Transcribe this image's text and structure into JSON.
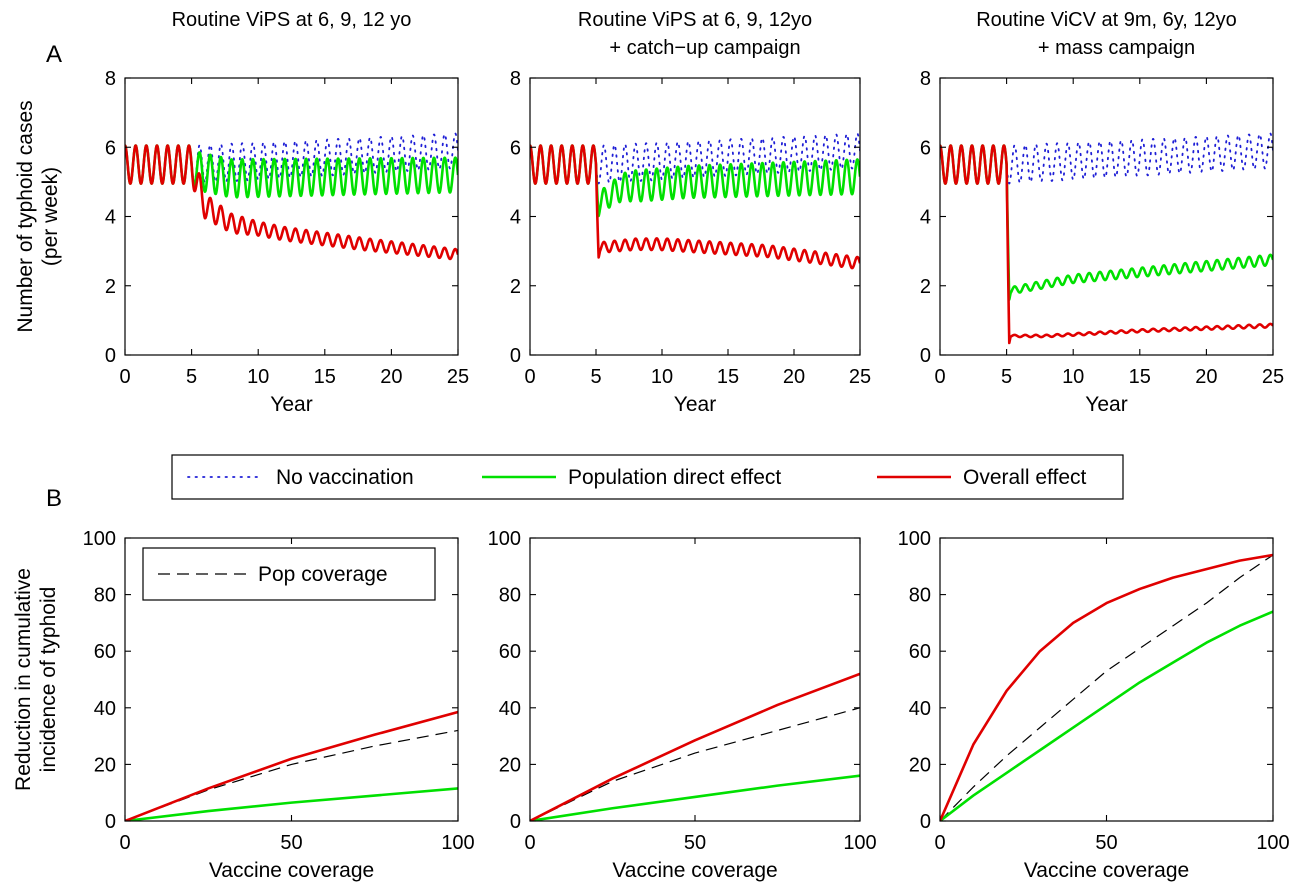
{
  "figure": {
    "panel_labels": [
      "A",
      "B"
    ],
    "legend_entries": [
      "No vaccination",
      "Population direct effect",
      "Overall effect"
    ],
    "colors": {
      "no_vaccination": "#1f1fd6",
      "direct": "#00e000",
      "overall": "#e00000",
      "coverage": "#000000"
    }
  },
  "chart_data": [
    {
      "type": "line",
      "title": [
        "Routine ViPS at 6, 9, 12 yo"
      ],
      "xlabel": "Year",
      "ylabel": [
        "Number of typhoid cases",
        "(per week)"
      ],
      "xlim": [
        0,
        25
      ],
      "ylim": [
        0,
        8
      ],
      "xticks": [
        0,
        5,
        10,
        15,
        20,
        25
      ],
      "yticks": [
        0,
        2,
        4,
        6,
        8
      ],
      "grid": false,
      "series": [
        {
          "name": "No vaccination",
          "style": "dotted",
          "seasonal_cycles_per_year": 1.25,
          "mean": [
            [
              0,
              5.5
            ],
            [
              5,
              5.5
            ],
            [
              25,
              5.9
            ]
          ],
          "amplitude": [
            [
              0,
              0.55
            ],
            [
              5,
              0.55
            ],
            [
              25,
              0.5
            ]
          ]
        },
        {
          "name": "Population direct effect",
          "style": "solid",
          "seasonal_cycles_per_year": 1.25,
          "mean": [
            [
              0,
              5.5
            ],
            [
              5,
              5.5
            ],
            [
              5.6,
              5.3
            ],
            [
              8,
              5.1
            ],
            [
              25,
              5.2
            ]
          ],
          "amplitude": [
            [
              0,
              0.55
            ],
            [
              5,
              0.55
            ],
            [
              8,
              0.55
            ],
            [
              25,
              0.5
            ]
          ]
        },
        {
          "name": "Overall effect",
          "style": "solid",
          "seasonal_cycles_per_year": 1.25,
          "mean": [
            [
              0,
              5.5
            ],
            [
              5,
              5.5
            ],
            [
              6,
              4.3
            ],
            [
              8,
              3.8
            ],
            [
              12,
              3.5
            ],
            [
              18,
              3.2
            ],
            [
              25,
              2.9
            ]
          ],
          "amplitude": [
            [
              0,
              0.55
            ],
            [
              5,
              0.55
            ],
            [
              6,
              0.35
            ],
            [
              10,
              0.2
            ],
            [
              25,
              0.15
            ]
          ]
        }
      ]
    },
    {
      "type": "line",
      "title": [
        "Routine ViPS at 6, 9, 12yo",
        "+ catch−up campaign"
      ],
      "xlabel": "Year",
      "ylabel": [],
      "xlim": [
        0,
        25
      ],
      "ylim": [
        0,
        8
      ],
      "xticks": [
        0,
        5,
        10,
        15,
        20,
        25
      ],
      "yticks": [
        0,
        2,
        4,
        6,
        8
      ],
      "grid": false,
      "series": [
        {
          "name": "No vaccination",
          "style": "dotted",
          "seasonal_cycles_per_year": 1.25,
          "mean": [
            [
              0,
              5.5
            ],
            [
              5,
              5.5
            ],
            [
              25,
              5.9
            ]
          ],
          "amplitude": [
            [
              0,
              0.55
            ],
            [
              5,
              0.55
            ],
            [
              25,
              0.5
            ]
          ]
        },
        {
          "name": "Population direct effect",
          "style": "solid",
          "seasonal_cycles_per_year": 1.25,
          "mean": [
            [
              0,
              5.5
            ],
            [
              5,
              5.5
            ],
            [
              5.2,
              4.4
            ],
            [
              7,
              4.85
            ],
            [
              12,
              5.0
            ],
            [
              25,
              5.15
            ]
          ],
          "amplitude": [
            [
              0,
              0.55
            ],
            [
              5,
              0.55
            ],
            [
              5.3,
              0.3
            ],
            [
              8,
              0.45
            ],
            [
              25,
              0.5
            ]
          ]
        },
        {
          "name": "Overall effect",
          "style": "solid",
          "seasonal_cycles_per_year": 1.25,
          "mean": [
            [
              0,
              5.5
            ],
            [
              5,
              5.5
            ],
            [
              5.2,
              3.1
            ],
            [
              8,
              3.2
            ],
            [
              10,
              3.2
            ],
            [
              18,
              3.0
            ],
            [
              25,
              2.65
            ]
          ],
          "amplitude": [
            [
              0,
              0.55
            ],
            [
              5,
              0.55
            ],
            [
              5.3,
              0.15
            ],
            [
              10,
              0.17
            ],
            [
              25,
              0.17
            ]
          ]
        }
      ]
    },
    {
      "type": "line",
      "title": [
        "Routine ViCV at 9m, 6y, 12yo",
        "+ mass campaign"
      ],
      "xlabel": "Year",
      "ylabel": [],
      "xlim": [
        0,
        25
      ],
      "ylim": [
        0,
        8
      ],
      "xticks": [
        0,
        5,
        10,
        15,
        20,
        25
      ],
      "yticks": [
        0,
        2,
        4,
        6,
        8
      ],
      "grid": false,
      "series": [
        {
          "name": "No vaccination",
          "style": "dotted",
          "seasonal_cycles_per_year": 1.25,
          "mean": [
            [
              0,
              5.5
            ],
            [
              5,
              5.5
            ],
            [
              25,
              5.9
            ]
          ],
          "amplitude": [
            [
              0,
              0.55
            ],
            [
              5,
              0.55
            ],
            [
              25,
              0.5
            ]
          ]
        },
        {
          "name": "Population direct effect",
          "style": "solid",
          "seasonal_cycles_per_year": 1.25,
          "mean": [
            [
              0,
              5.5
            ],
            [
              5,
              5.5
            ],
            [
              5.2,
              1.85
            ],
            [
              10,
              2.2
            ],
            [
              18,
              2.5
            ],
            [
              25,
              2.75
            ]
          ],
          "amplitude": [
            [
              0,
              0.55
            ],
            [
              5,
              0.55
            ],
            [
              5.3,
              0.1
            ],
            [
              10,
              0.12
            ],
            [
              25,
              0.15
            ]
          ]
        },
        {
          "name": "Overall effect",
          "style": "solid",
          "seasonal_cycles_per_year": 1.25,
          "mean": [
            [
              0,
              5.5
            ],
            [
              5,
              5.5
            ],
            [
              5.2,
              0.55
            ],
            [
              8,
              0.55
            ],
            [
              15,
              0.7
            ],
            [
              25,
              0.85
            ]
          ],
          "amplitude": [
            [
              0,
              0.55
            ],
            [
              5,
              0.55
            ],
            [
              5.3,
              0.03
            ],
            [
              25,
              0.05
            ]
          ]
        }
      ]
    },
    {
      "type": "line",
      "title": [],
      "xlabel": "Vaccine coverage",
      "ylabel": [
        "Reduction in cumulative",
        "incidence of typhoid"
      ],
      "xlim": [
        0,
        100
      ],
      "ylim": [
        0,
        100
      ],
      "xticks": [
        0,
        50,
        100
      ],
      "yticks": [
        0,
        20,
        40,
        60,
        80,
        100
      ],
      "grid": false,
      "inset_legend": "Pop coverage",
      "series": [
        {
          "name": "Pop coverage",
          "style": "dashed",
          "x": [
            0,
            25,
            50,
            75,
            100
          ],
          "y": [
            0,
            11,
            20,
            26.5,
            32
          ]
        },
        {
          "name": "Population direct effect",
          "style": "solid",
          "x": [
            0,
            25,
            50,
            75,
            100
          ],
          "y": [
            0,
            3.5,
            6.5,
            9,
            11.5
          ]
        },
        {
          "name": "Overall effect",
          "style": "solid",
          "x": [
            0,
            25,
            50,
            75,
            100
          ],
          "y": [
            0,
            11.5,
            22,
            30.5,
            38.5
          ]
        }
      ]
    },
    {
      "type": "line",
      "title": [],
      "xlabel": "Vaccine coverage",
      "ylabel": [],
      "xlim": [
        0,
        100
      ],
      "ylim": [
        0,
        100
      ],
      "xticks": [
        0,
        50,
        100
      ],
      "yticks": [
        0,
        20,
        40,
        60,
        80,
        100
      ],
      "grid": false,
      "series": [
        {
          "name": "Pop coverage",
          "style": "dashed",
          "x": [
            0,
            25,
            50,
            75,
            100
          ],
          "y": [
            0,
            14,
            24,
            32,
            40
          ]
        },
        {
          "name": "Population direct effect",
          "style": "solid",
          "x": [
            0,
            25,
            50,
            75,
            100
          ],
          "y": [
            0,
            4.5,
            8.5,
            12.5,
            16
          ]
        },
        {
          "name": "Overall effect",
          "style": "solid",
          "x": [
            0,
            25,
            50,
            75,
            100
          ],
          "y": [
            0,
            15,
            28.5,
            41,
            52
          ]
        }
      ]
    },
    {
      "type": "line",
      "title": [],
      "xlabel": "Vaccine coverage",
      "ylabel": [],
      "xlim": [
        0,
        100
      ],
      "ylim": [
        0,
        100
      ],
      "xticks": [
        0,
        50,
        100
      ],
      "yticks": [
        0,
        20,
        40,
        60,
        80,
        100
      ],
      "grid": false,
      "series": [
        {
          "name": "Pop coverage",
          "style": "dashed",
          "x": [
            0,
            10,
            20,
            30,
            40,
            50,
            60,
            70,
            80,
            90,
            100
          ],
          "y": [
            0,
            12,
            23,
            33,
            43,
            53,
            61,
            69,
            77,
            86,
            94
          ]
        },
        {
          "name": "Population direct effect",
          "style": "solid",
          "x": [
            0,
            10,
            20,
            30,
            40,
            50,
            60,
            70,
            80,
            90,
            100
          ],
          "y": [
            0,
            9,
            17,
            25,
            33,
            41,
            49,
            56,
            63,
            69,
            74
          ]
        },
        {
          "name": "Overall effect",
          "style": "solid",
          "x": [
            0,
            10,
            20,
            30,
            40,
            50,
            60,
            70,
            80,
            90,
            100
          ],
          "y": [
            0,
            27,
            46,
            60,
            70,
            77,
            82,
            86,
            89,
            92,
            94
          ]
        }
      ]
    }
  ]
}
